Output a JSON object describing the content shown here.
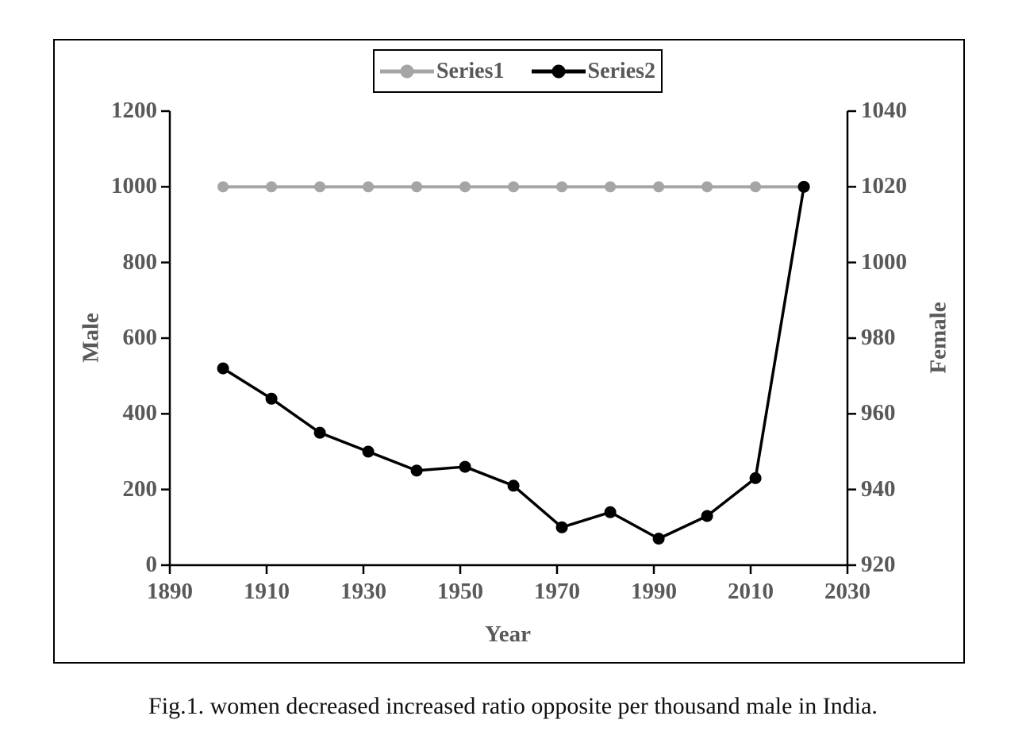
{
  "figure": {
    "caption": "Fig.1. women decreased increased ratio opposite per thousand male in India."
  },
  "chart_data": {
    "type": "line",
    "title": "",
    "x": [
      1901,
      1911,
      1921,
      1931,
      1941,
      1951,
      1961,
      1971,
      1981,
      1991,
      2001,
      2011,
      2021
    ],
    "series": [
      {
        "name": "Series1",
        "axis": "left",
        "color": "#A5A5A5",
        "values": [
          1000,
          1000,
          1000,
          1000,
          1000,
          1000,
          1000,
          1000,
          1000,
          1000,
          1000,
          1000,
          1000
        ]
      },
      {
        "name": "Series2",
        "axis": "right",
        "color": "#000000",
        "values": [
          972,
          964,
          955,
          950,
          945,
          946,
          941,
          930,
          934,
          927,
          933,
          943,
          1020
        ]
      }
    ],
    "x_axis": {
      "label": "Year",
      "min": 1890,
      "max": 2030,
      "tick_step": 20,
      "ticks": [
        1890,
        1910,
        1930,
        1950,
        1970,
        1990,
        2010,
        2030
      ]
    },
    "y_left": {
      "label": "Male",
      "min": 0,
      "max": 1200,
      "tick_step": 200,
      "ticks": [
        1200,
        1000,
        800,
        600,
        400,
        200,
        0
      ]
    },
    "y_right": {
      "label": "Female",
      "min": 920,
      "max": 1040,
      "tick_step": 20,
      "ticks": [
        1040,
        1020,
        1000,
        980,
        960,
        940,
        920
      ]
    },
    "legend": {
      "position": "top-center",
      "entries": [
        "Series1",
        "Series2"
      ]
    },
    "grid": false,
    "colors": {
      "axis_line": "#000000",
      "tick_label": "#595959",
      "frame_border": "#000000"
    }
  }
}
